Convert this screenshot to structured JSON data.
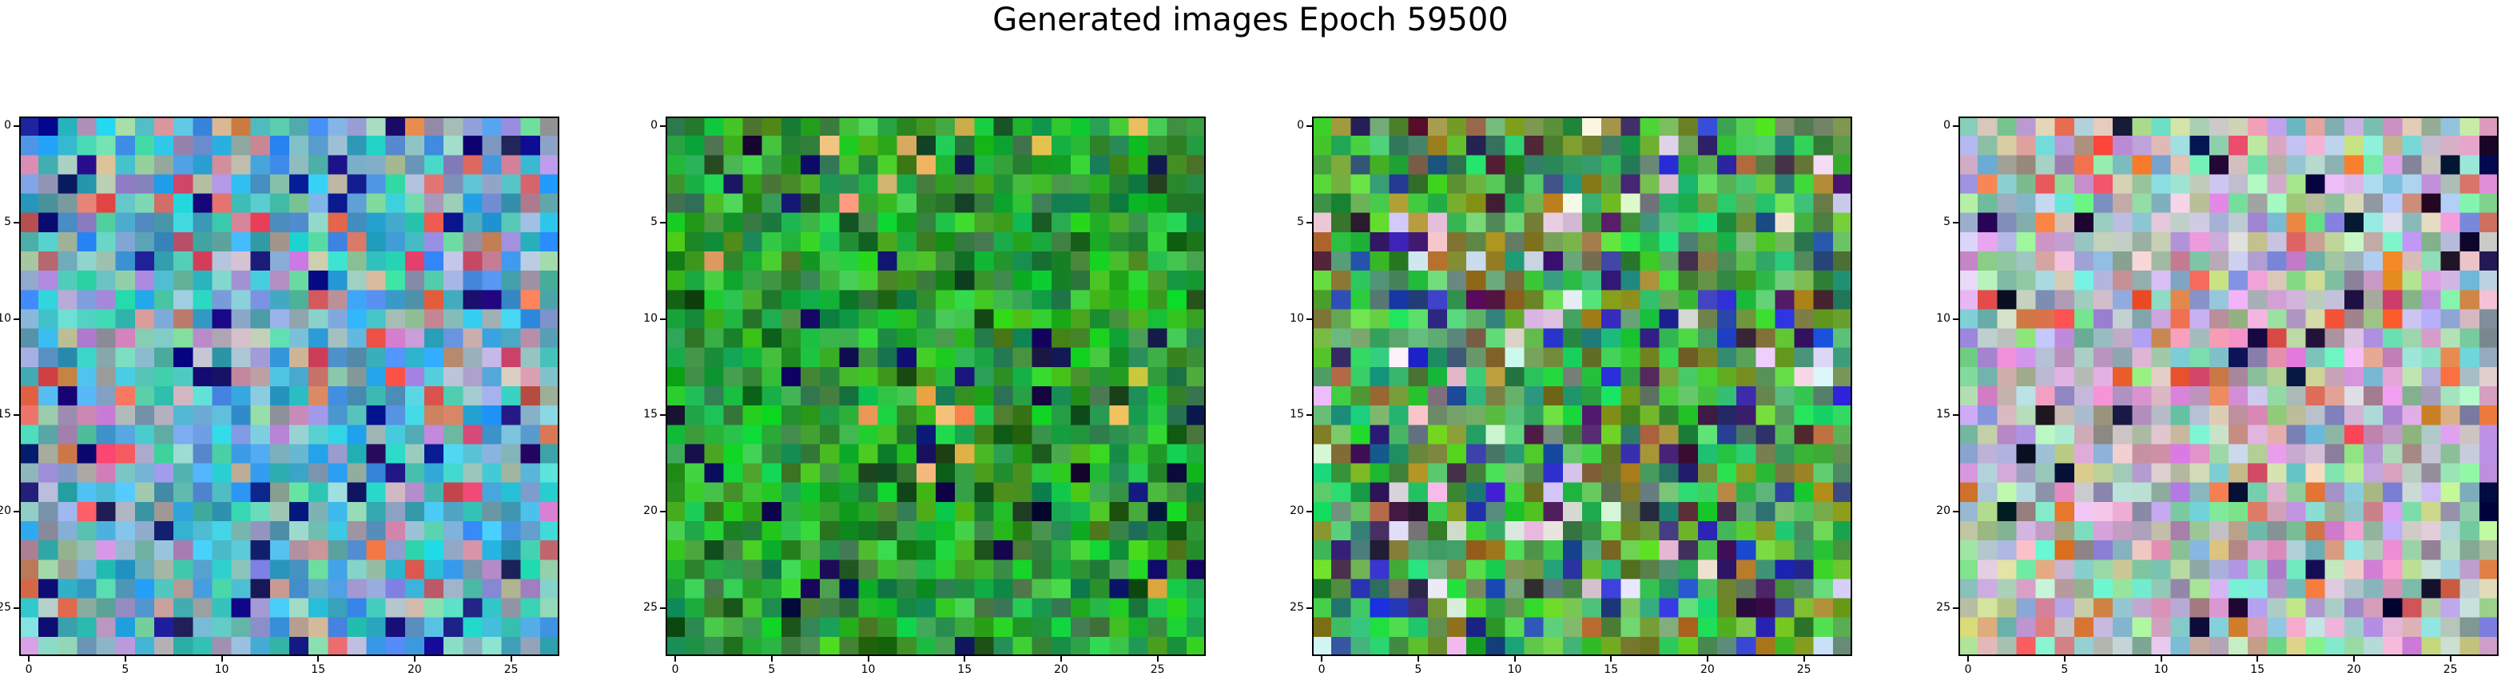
{
  "figure": {
    "title": "Generated images Epoch 59500"
  },
  "chart_data": [
    {
      "type": "heatmap",
      "title": "",
      "xlabel": "",
      "ylabel": "",
      "image_size": 28,
      "palette": "blue-cyan",
      "xticks": [
        "0",
        "5",
        "10",
        "15",
        "20",
        "25"
      ],
      "yticks": [
        "0",
        "5",
        "10",
        "15",
        "20",
        "25"
      ],
      "xlim": [
        -0.5,
        27.5
      ],
      "ylim": [
        27.5,
        -0.5
      ]
    },
    {
      "type": "heatmap",
      "title": "",
      "xlabel": "",
      "ylabel": "",
      "image_size": 28,
      "palette": "green",
      "xticks": [
        "0",
        "5",
        "10",
        "15",
        "20",
        "25"
      ],
      "yticks": [
        "0",
        "5",
        "10",
        "15",
        "20",
        "25"
      ],
      "xlim": [
        -0.5,
        27.5
      ],
      "ylim": [
        27.5,
        -0.5
      ]
    },
    {
      "type": "heatmap",
      "title": "",
      "xlabel": "",
      "ylabel": "",
      "image_size": 28,
      "palette": "mixed-green",
      "xticks": [
        "0",
        "5",
        "10",
        "15",
        "20",
        "25"
      ],
      "yticks": [
        "0",
        "5",
        "10",
        "15",
        "20",
        "25"
      ],
      "xlim": [
        -0.5,
        27.5
      ],
      "ylim": [
        27.5,
        -0.5
      ]
    },
    {
      "type": "heatmap",
      "title": "",
      "xlabel": "",
      "ylabel": "",
      "image_size": 28,
      "palette": "pastel",
      "xticks": [
        "0",
        "5",
        "10",
        "15",
        "20",
        "25"
      ],
      "yticks": [
        "0",
        "5",
        "10",
        "15",
        "20",
        "25"
      ],
      "xlim": [
        -0.5,
        27.5
      ],
      "ylim": [
        27.5,
        -0.5
      ]
    }
  ]
}
